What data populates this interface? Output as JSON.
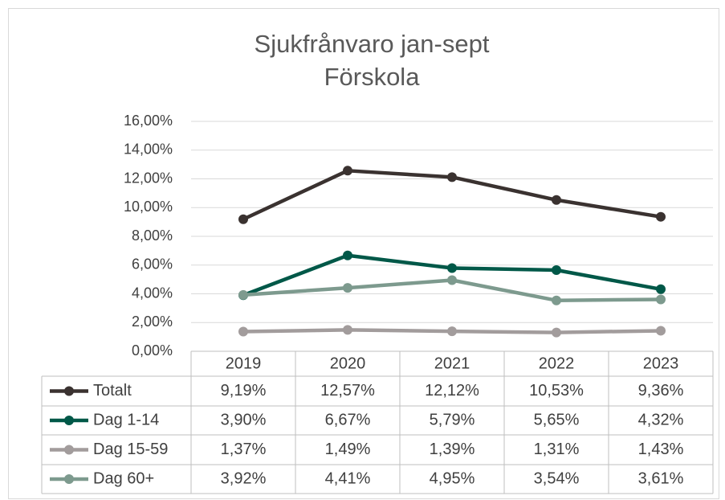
{
  "chart_data": {
    "type": "line",
    "title": "Sjukfrånvaro jan-sept",
    "subtitle": "Förskola",
    "categories": [
      "2019",
      "2020",
      "2021",
      "2022",
      "2023"
    ],
    "series": [
      {
        "name": "Totalt",
        "color": "#3a3230",
        "values": [
          9.19,
          12.57,
          12.12,
          10.53,
          9.36
        ],
        "value_labels": [
          "9,19%",
          "12,57%",
          "12,12%",
          "10,53%",
          "9,36%"
        ]
      },
      {
        "name": "Dag 1-14",
        "color": "#005848",
        "values": [
          3.9,
          6.67,
          5.79,
          5.65,
          4.32
        ],
        "value_labels": [
          "3,90%",
          "6,67%",
          "5,79%",
          "5,65%",
          "4,32%"
        ]
      },
      {
        "name": "Dag 15-59",
        "color": "#a29c9c",
        "values": [
          1.37,
          1.49,
          1.39,
          1.31,
          1.43
        ],
        "value_labels": [
          "1,37%",
          "1,49%",
          "1,39%",
          "1,31%",
          "1,43%"
        ]
      },
      {
        "name": "Dag 60+",
        "color": "#7d9a8e",
        "values": [
          3.92,
          4.41,
          4.95,
          3.54,
          3.61
        ],
        "value_labels": [
          "3,92%",
          "4,41%",
          "4,95%",
          "3,54%",
          "3,61%"
        ]
      }
    ],
    "ylim": [
      0,
      16
    ],
    "yticks": [
      {
        "value": 0,
        "label": "0,00%"
      },
      {
        "value": 2,
        "label": "2,00%"
      },
      {
        "value": 4,
        "label": "4,00%"
      },
      {
        "value": 6,
        "label": "6,00%"
      },
      {
        "value": 8,
        "label": "8,00%"
      },
      {
        "value": 10,
        "label": "10,00%"
      },
      {
        "value": 12,
        "label": "12,00%"
      },
      {
        "value": 14,
        "label": "14,00%"
      },
      {
        "value": 16,
        "label": "16,00%"
      }
    ],
    "grid": true
  }
}
